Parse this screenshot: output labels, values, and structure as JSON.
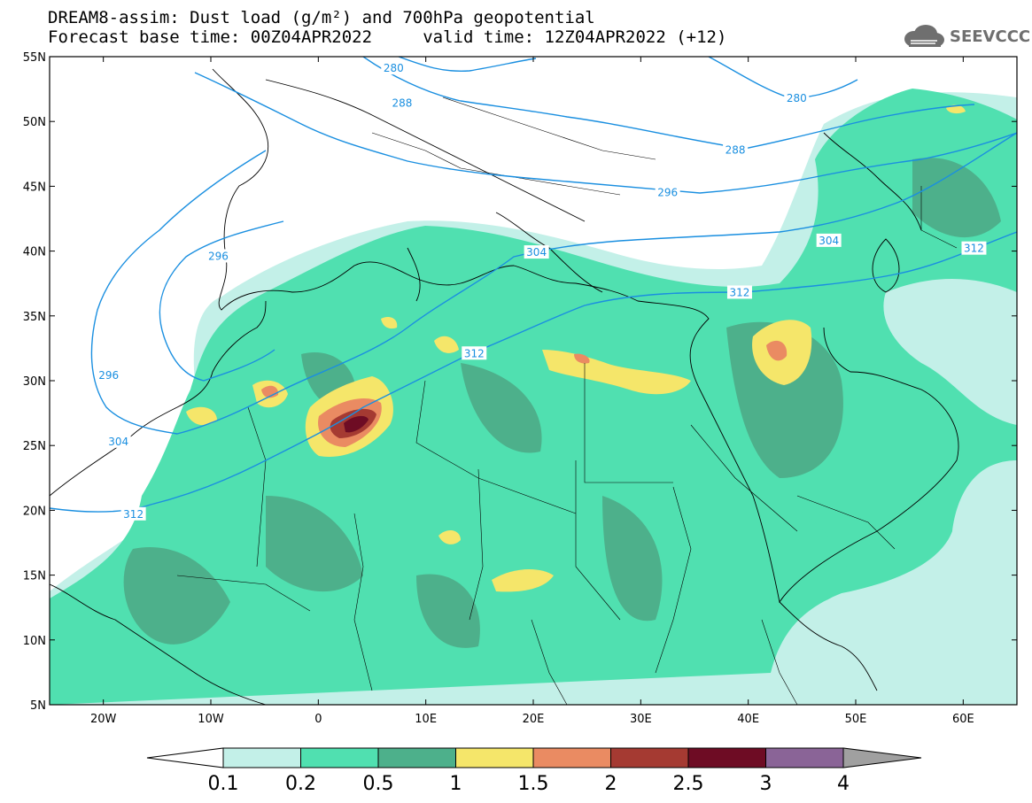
{
  "header": {
    "title_line1": "DREAM8-assim: Dust load (g/m²) and 700hPa geopotential",
    "title_line2": "Forecast base time: 00Z04APR2022     valid time: 12Z04APR2022 (+12)"
  },
  "logo": {
    "text": "SEEVCCC",
    "icon": "cloud-icon"
  },
  "map": {
    "lon_range": [
      -25,
      65
    ],
    "lat_range": [
      5,
      55
    ],
    "lat_ticks": [
      {
        "value": 55,
        "label": "55N"
      },
      {
        "value": 50,
        "label": "50N"
      },
      {
        "value": 45,
        "label": "45N"
      },
      {
        "value": 40,
        "label": "40N"
      },
      {
        "value": 35,
        "label": "35N"
      },
      {
        "value": 30,
        "label": "30N"
      },
      {
        "value": 25,
        "label": "25N"
      },
      {
        "value": 20,
        "label": "20N"
      },
      {
        "value": 15,
        "label": "15N"
      },
      {
        "value": 10,
        "label": "10N"
      },
      {
        "value": 5,
        "label": "5N"
      }
    ],
    "lon_ticks": [
      {
        "value": -20,
        "label": "20W"
      },
      {
        "value": -10,
        "label": "10W"
      },
      {
        "value": 0,
        "label": "0"
      },
      {
        "value": 10,
        "label": "10E"
      },
      {
        "value": 20,
        "label": "20E"
      },
      {
        "value": 30,
        "label": "30E"
      },
      {
        "value": 40,
        "label": "40E"
      },
      {
        "value": 50,
        "label": "50E"
      },
      {
        "value": 60,
        "label": "60E"
      }
    ],
    "geopotential_color": "#1a8fe0",
    "contour_labels": [
      {
        "label": "280",
        "lon": 7,
        "lat": 54.1
      },
      {
        "label": "288",
        "lon": 7.8,
        "lat": 51.4
      },
      {
        "label": "280",
        "lon": 44.5,
        "lat": 51.8
      },
      {
        "label": "288",
        "lon": 38.8,
        "lat": 47.8
      },
      {
        "label": "296",
        "lon": 32.5,
        "lat": 44.5
      },
      {
        "label": "304",
        "lon": 47.5,
        "lat": 40.8
      },
      {
        "label": "312",
        "lon": 61,
        "lat": 40.2
      },
      {
        "label": "296",
        "lon": -9.3,
        "lat": 39.6
      },
      {
        "label": "304",
        "lon": 20.3,
        "lat": 39.9
      },
      {
        "label": "312",
        "lon": 39.2,
        "lat": 36.8
      },
      {
        "label": "312",
        "lon": 14.5,
        "lat": 32.1
      },
      {
        "label": "296",
        "lon": -19.5,
        "lat": 30.4
      },
      {
        "label": "304",
        "lon": -18.6,
        "lat": 25.3
      },
      {
        "label": "312",
        "lon": -17.2,
        "lat": 19.7
      }
    ]
  },
  "colorbar": {
    "colors": [
      "#c3f0e8",
      "#50e0b0",
      "#4db08b",
      "#f5e66a",
      "#ea8b62",
      "#a53a32",
      "#6e0c24",
      "#8a6497"
    ],
    "extension_colors": [
      "#ffffff",
      "#a0a0a0"
    ],
    "tick_labels": [
      "0.1",
      "0.2",
      "0.5",
      "1",
      "1.5",
      "2",
      "2.5",
      "3",
      "4"
    ]
  }
}
